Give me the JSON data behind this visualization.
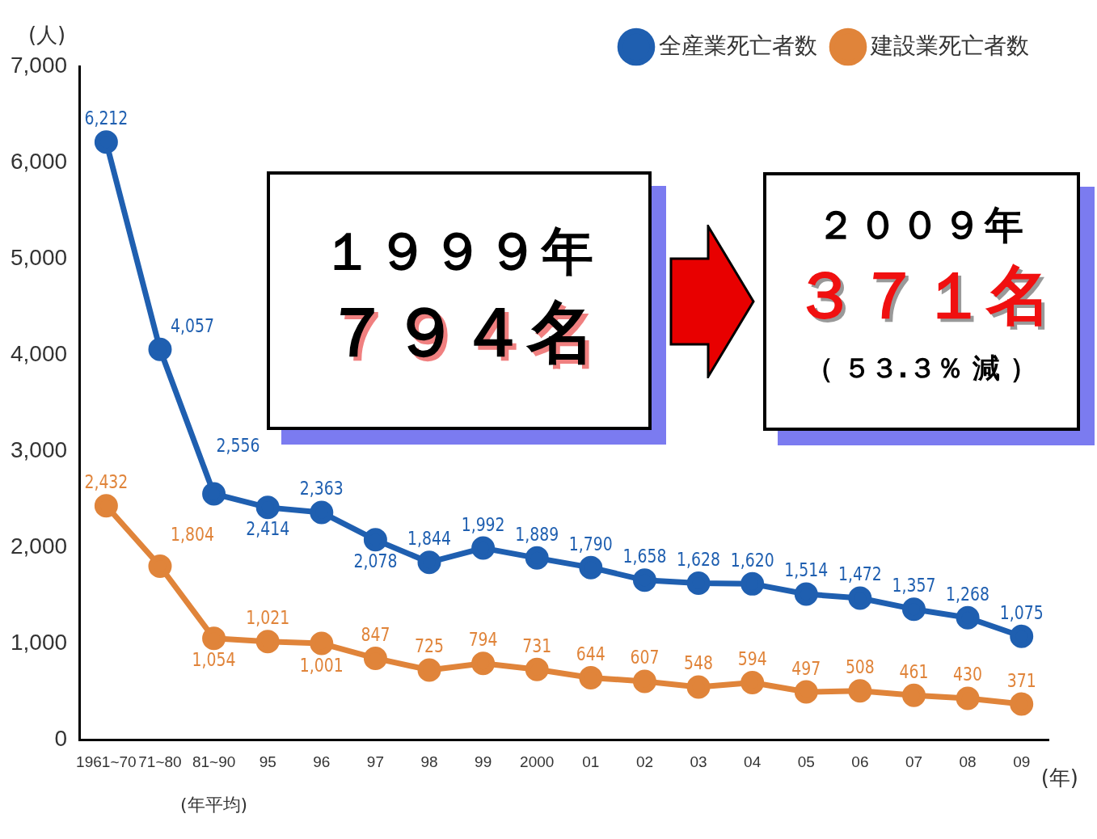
{
  "chart_data": {
    "type": "line",
    "ylabel": "(人)",
    "xlabel": "(年)",
    "categories": [
      "1961~70",
      "71~80",
      "81~90",
      "95",
      "96",
      "97",
      "98",
      "99",
      "2000",
      "01",
      "02",
      "03",
      "04",
      "05",
      "06",
      "07",
      "08",
      "09"
    ],
    "series": [
      {
        "name": "全産業死亡者数",
        "color": "#1f5fb0",
        "values": [
          6212,
          4057,
          2556,
          2414,
          2363,
          2078,
          1844,
          1992,
          1889,
          1790,
          1658,
          1628,
          1620,
          1514,
          1472,
          1357,
          1268,
          1075
        ],
        "value_labels": [
          "6,212",
          "4,057",
          "2,556",
          "2,414",
          "2,363",
          "2,078",
          "1,844",
          "1,992",
          "1,889",
          "1,790",
          "1,658",
          "1,628",
          "1,620",
          "1,514",
          "1,472",
          "1,357",
          "1,268",
          "1,075"
        ]
      },
      {
        "name": "建設業死亡者数",
        "color": "#e0843a",
        "values": [
          2432,
          1804,
          1054,
          1021,
          1001,
          847,
          725,
          794,
          731,
          644,
          607,
          548,
          594,
          497,
          508,
          461,
          430,
          371
        ],
        "value_labels": [
          "2,432",
          "1,804",
          "1,054",
          "1,021",
          "1,001",
          "847",
          "725",
          "794",
          "731",
          "644",
          "607",
          "548",
          "594",
          "497",
          "508",
          "461",
          "430",
          "371"
        ]
      }
    ],
    "ylim": [
      0,
      7000
    ],
    "yticks": [
      0,
      {
        "value": 1000,
        "label": "1,000"
      },
      {
        "value": 2000,
        "label": "2,000"
      },
      {
        "value": 3000,
        "label": "3,000"
      },
      {
        "value": 4000,
        "label": "4,000"
      },
      {
        "value": 5000,
        "label": "5,000"
      },
      {
        "value": 6000,
        "label": "6,000"
      },
      {
        "value": 7000,
        "label": "7,000"
      }
    ],
    "grid": false,
    "legend": "top right",
    "marker": "circle",
    "line_style": "solid",
    "annotations": [
      "(年平均)",
      "１９９９年",
      "７９４名",
      "２００９年",
      "３７１名",
      "（ ５３.３％ 減 ）"
    ]
  }
}
